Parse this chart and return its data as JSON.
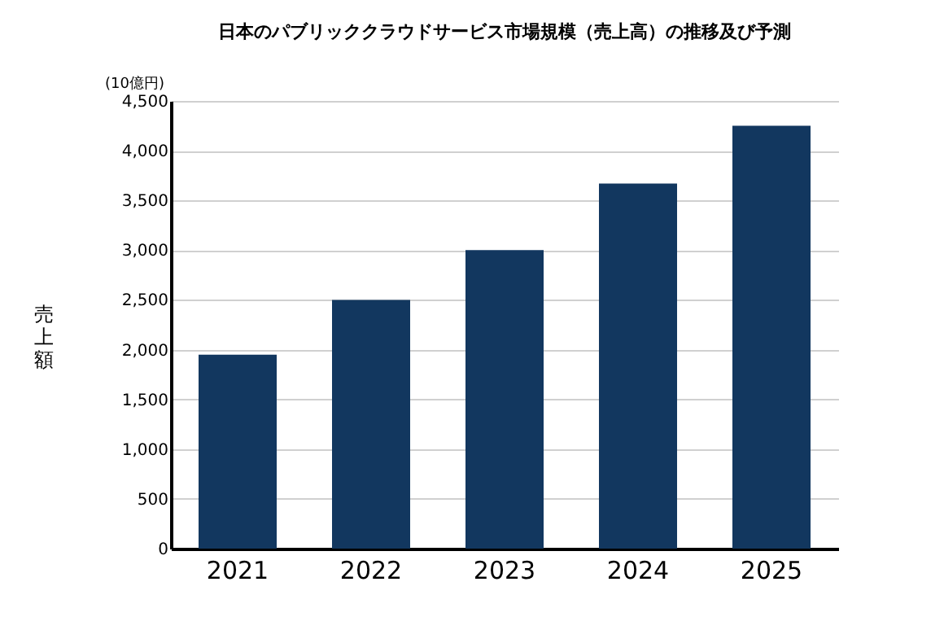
{
  "chart_data": {
    "type": "bar",
    "title": "日本のパブリッククラウドサービス市場規模（売上高）の推移及び予測",
    "ylabel": "売上額",
    "annotations": [
      "(10億円)"
    ],
    "categories": [
      "2021",
      "2022",
      "2023",
      "2024",
      "2025"
    ],
    "values": [
      1950,
      2500,
      3000,
      3670,
      4250
    ],
    "color": "#12375f",
    "ylim": [
      0,
      4500
    ],
    "yticks": [
      0,
      500,
      {
        "value": 1000,
        "label": "1,000"
      },
      {
        "value": 1500,
        "label": "1,500"
      },
      {
        "value": 2000,
        "label": "2,000"
      },
      {
        "value": 2500,
        "label": "2,500"
      },
      {
        "value": 3000,
        "label": "3,000"
      },
      {
        "value": 3500,
        "label": "3,500"
      },
      {
        "value": 4000,
        "label": "4,000"
      },
      {
        "value": 4500,
        "label": "4,500"
      }
    ],
    "grid": "y"
  }
}
